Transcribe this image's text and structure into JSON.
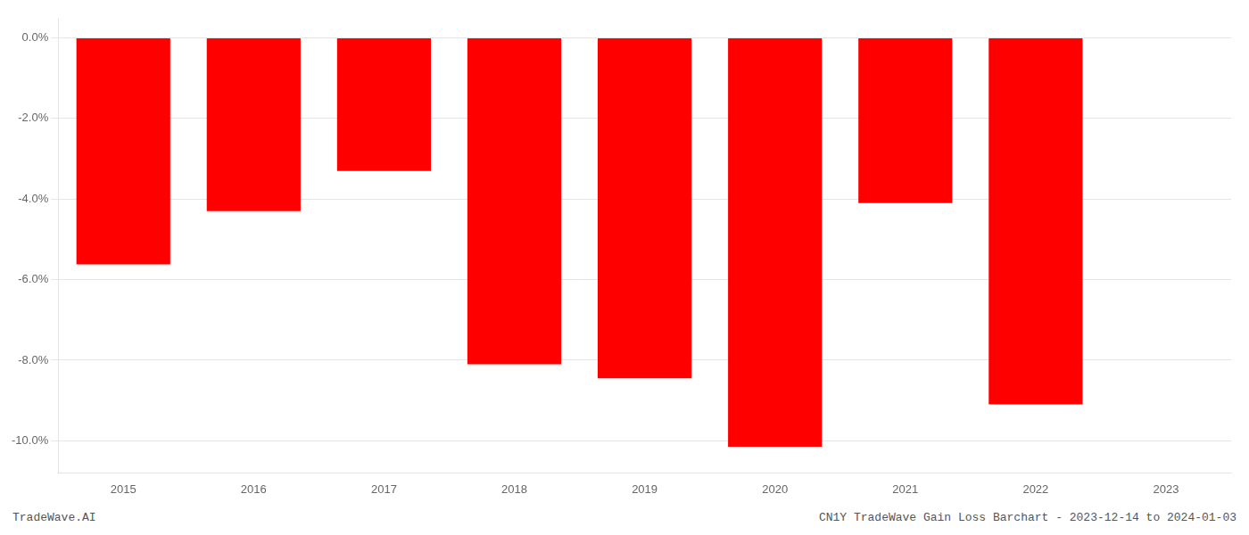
{
  "chart_data": {
    "type": "bar",
    "categories": [
      "2015",
      "2016",
      "2017",
      "2018",
      "2019",
      "2020",
      "2021",
      "2022",
      "2023"
    ],
    "values": [
      -5.62,
      -4.3,
      -3.3,
      -8.1,
      -8.45,
      -10.15,
      -4.1,
      -9.1,
      null
    ],
    "color": "#ff0000",
    "ylim": [
      -10.8,
      0.5
    ],
    "yticks": [
      {
        "value": 0.0,
        "label": "0.0%"
      },
      {
        "value": -2.0,
        "label": "-2.0%"
      },
      {
        "value": -4.0,
        "label": "-4.0%"
      },
      {
        "value": -6.0,
        "label": "-6.0%"
      },
      {
        "value": -8.0,
        "label": "-8.0%"
      },
      {
        "value": -10.0,
        "label": "-10.0%"
      }
    ],
    "grid": true,
    "annotations": [
      "TradeWave.AI",
      "CN1Y TradeWave Gain Loss Barchart - 2023-12-14 to 2024-01-03"
    ]
  }
}
